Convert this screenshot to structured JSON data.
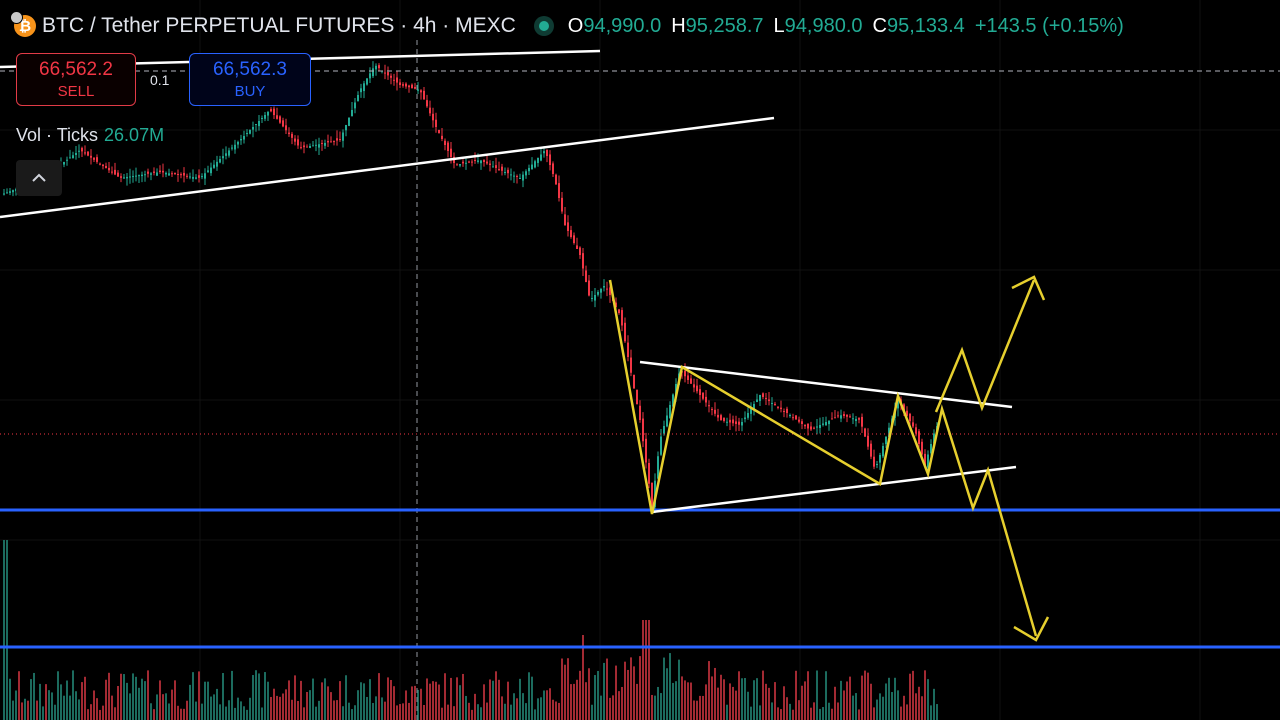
{
  "header": {
    "title": "BTC / Tether PERPETUAL FUTURES · 4h · MEXC",
    "ohlc": [
      {
        "label": "O",
        "value": "94,990.0"
      },
      {
        "label": "H",
        "value": "95,258.7"
      },
      {
        "label": "L",
        "value": "94,980.0"
      },
      {
        "label": "C",
        "value": "95,133.4"
      }
    ],
    "change": "+143.5 (+0.15%)"
  },
  "trade": {
    "sell_price": "66,562.2",
    "sell_label": "SELL",
    "buy_price": "66,562.3",
    "buy_label": "BUY",
    "spread": "0.1"
  },
  "volume": {
    "label": "Vol · Ticks",
    "value": "26.07M"
  },
  "colors": {
    "up": "#22ab94",
    "down": "#f23645",
    "buy": "#2962ff",
    "drawing_yellow": "#e6cf2e",
    "trendline": "#ffffff",
    "horizontal_line": "#2962ff"
  },
  "icons": {
    "coin": "bitcoin-icon",
    "status": "market-open-dot-icon",
    "collapse": "chevron-up-icon"
  }
}
